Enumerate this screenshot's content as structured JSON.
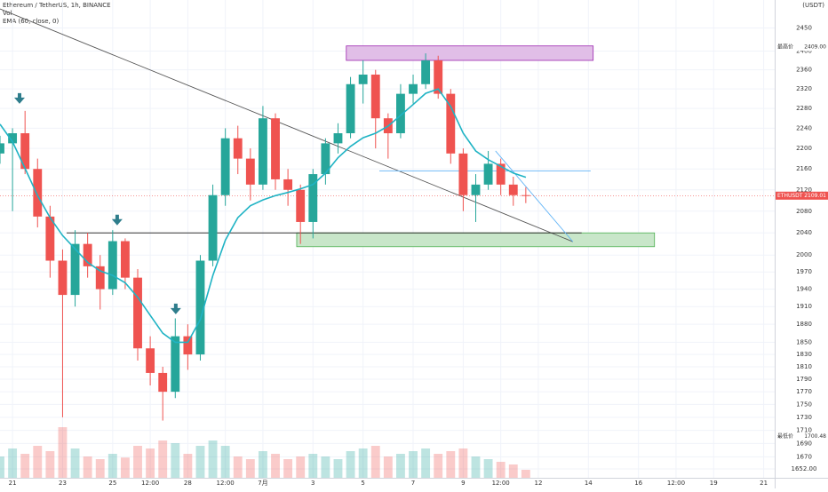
{
  "chart_data": {
    "type": "candlestick",
    "title": "Ethereum / TetherUS, 1h, BINANCE",
    "volume_title": "Vol",
    "ema_title": "EMA (60, close, 0)",
    "y_unit": "(USDT)",
    "log_scale": true,
    "grid": true,
    "up_color": "#26a69a",
    "down_color": "#ef5350",
    "ema_color": "#1fb3c4",
    "x": [
      -0.5,
      0,
      0.5,
      1,
      1.5,
      2,
      2.5,
      3,
      3.5,
      4,
      4.5,
      5,
      5.5,
      6,
      6.5,
      7,
      7.5,
      8,
      8.5,
      9,
      9.5,
      10,
      10.5,
      11,
      11.5,
      12,
      12.5,
      13,
      13.5,
      14,
      14.5,
      15,
      15.5,
      16,
      16.5,
      17,
      17.5,
      18,
      18.5,
      19,
      19.5,
      20,
      20.5
    ],
    "open": [
      2190,
      2210,
      2230,
      2160,
      2070,
      1990,
      1930,
      2020,
      1980,
      1940,
      2025,
      1960,
      1840,
      1800,
      1770,
      1860,
      1830,
      1990,
      2110,
      2220,
      2180,
      2130,
      2260,
      2140,
      2120,
      2060,
      2150,
      2210,
      2230,
      2330,
      2350,
      2260,
      2230,
      2310,
      2330,
      2380,
      2310,
      2190,
      2110,
      2130,
      2170,
      2130,
      2110
    ],
    "high": [
      2225,
      2240,
      2275,
      2180,
      2090,
      2010,
      2045,
      2040,
      2000,
      2045,
      2030,
      1975,
      1860,
      1810,
      1890,
      1880,
      2000,
      2130,
      2240,
      2245,
      2200,
      2285,
      2270,
      2160,
      2130,
      2160,
      2220,
      2250,
      2345,
      2380,
      2360,
      2270,
      2330,
      2350,
      2395,
      2390,
      2320,
      2200,
      2150,
      2195,
      2180,
      2145,
      2125
    ],
    "low": [
      2170,
      2080,
      2150,
      2050,
      1960,
      1730,
      1910,
      1960,
      1905,
      1930,
      1940,
      1820,
      1780,
      1725,
      1760,
      1805,
      1820,
      1980,
      2090,
      2150,
      2100,
      2120,
      2120,
      2090,
      2020,
      2030,
      2130,
      2190,
      2220,
      2290,
      2200,
      2180,
      2220,
      2290,
      2320,
      2300,
      2170,
      2080,
      2060,
      2120,
      2110,
      2090,
      2095
    ],
    "close": [
      2210,
      2230,
      2160,
      2070,
      1990,
      1930,
      2020,
      1980,
      1940,
      2025,
      1960,
      1840,
      1800,
      1770,
      1860,
      1830,
      1990,
      2110,
      2220,
      2180,
      2130,
      2260,
      2140,
      2120,
      2060,
      2150,
      2210,
      2230,
      2330,
      2350,
      2260,
      2230,
      2310,
      2330,
      2380,
      2310,
      2190,
      2110,
      2130,
      2170,
      2130,
      2110,
      2109.01
    ],
    "ema": [
      2248,
      2213,
      2161,
      2109,
      2068,
      2035,
      2011,
      1987,
      1972,
      1964,
      1951,
      1926,
      1895,
      1865,
      1850,
      1850,
      1888,
      1964,
      2027,
      2068,
      2090,
      2101,
      2109,
      2115,
      2122,
      2130,
      2152,
      2182,
      2204,
      2221,
      2230,
      2244,
      2266,
      2288,
      2311,
      2320,
      2284,
      2230,
      2195,
      2178,
      2165,
      2152,
      2144
    ],
    "volume": [
      40,
      55,
      45,
      60,
      50,
      95,
      55,
      40,
      35,
      45,
      38,
      60,
      55,
      70,
      65,
      45,
      60,
      70,
      60,
      40,
      35,
      50,
      45,
      35,
      40,
      45,
      40,
      35,
      50,
      55,
      60,
      40,
      45,
      50,
      55,
      45,
      50,
      55,
      40,
      35,
      30,
      25,
      15
    ],
    "volume_ylim": [
      0,
      100
    ],
    "xlim": [
      -0.5,
      30.44
    ],
    "ylim": [
      1639,
      2512
    ],
    "xticks": [
      {
        "value": 0,
        "label": "21"
      },
      {
        "value": 2,
        "label": "23"
      },
      {
        "value": 4,
        "label": "25"
      },
      {
        "value": 5.5,
        "label": "12:00"
      },
      {
        "value": 7,
        "label": "28"
      },
      {
        "value": 8.5,
        "label": "12:00"
      },
      {
        "value": 10,
        "label": "7月"
      },
      {
        "value": 12,
        "label": "3"
      },
      {
        "value": 14,
        "label": "5"
      },
      {
        "value": 16,
        "label": "7"
      },
      {
        "value": 18,
        "label": "9"
      },
      {
        "value": 19.5,
        "label": "12:00"
      },
      {
        "value": 21,
        "label": "12"
      },
      {
        "value": 23,
        "label": "14"
      },
      {
        "value": 25,
        "label": "16"
      },
      {
        "value": 26.5,
        "label": "12:00"
      },
      {
        "value": 28,
        "label": "19"
      },
      {
        "value": 30,
        "label": "21"
      }
    ],
    "yticks": [
      2450,
      2400,
      2360,
      2320,
      2280,
      2240,
      2200,
      2160,
      2120,
      2080,
      2040,
      2000,
      1970,
      1940,
      1910,
      1880,
      1850,
      1830,
      1810,
      1790,
      1770,
      1750,
      1730,
      1710,
      1690,
      1670,
      {
        "value": 1652,
        "label": "1652.00"
      }
    ],
    "high_marker": {
      "label": "最高价",
      "price": {
        "value": 2409,
        "label": "2409.00"
      }
    },
    "low_marker": {
      "label": "最低价",
      "price": {
        "value": 1700.48,
        "label": "1700.48"
      }
    },
    "last_price": {
      "label": "ETHUSDT",
      "price": 2109.01
    },
    "zones": [
      {
        "color": "#e1bee7",
        "stroke": "#9c27b0",
        "x": [
          13.33,
          23.19
        ],
        "y": [
          2380,
          2411
        ]
      },
      {
        "color": "#c8e6c9",
        "stroke": "#4caf50",
        "x": [
          11.35,
          25.64
        ],
        "y": [
          2015,
          2040
        ]
      }
    ],
    "lines": [
      {
        "color": "#555555",
        "x": [
          -0.5,
          22.38
        ],
        "y": [
          2492,
          2024
        ]
      },
      {
        "color": "#333333",
        "x": [
          2.16,
          22.73
        ],
        "y": [
          2040,
          2040
        ]
      },
      {
        "color": "#64b5f6",
        "x": [
          14.65,
          23.09
        ],
        "y": [
          2156,
          2156
        ]
      },
      {
        "color": "#64b5f6",
        "x": [
          19.29,
          22.38
        ],
        "y": [
          2195,
          2024
        ]
      }
    ],
    "arrows": {
      "color": "#2e7d8c",
      "x": [
        0.28,
        4.18,
        6.52
      ],
      "y": [
        2293,
        2057,
        1900
      ]
    }
  }
}
